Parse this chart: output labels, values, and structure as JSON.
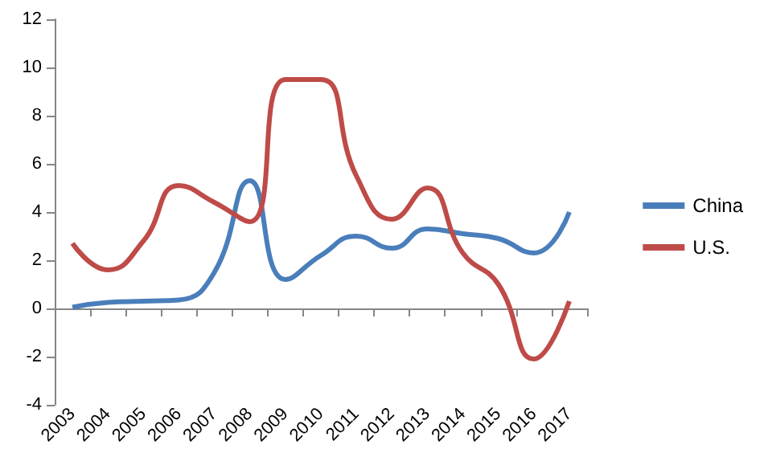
{
  "chart_data": {
    "type": "line",
    "categories": [
      "2003",
      "2004",
      "2005",
      "2006",
      "2007",
      "2008",
      "2009",
      "2010",
      "2011",
      "2012",
      "2013",
      "2014",
      "2015",
      "2016",
      "2017"
    ],
    "series": [
      {
        "name": "China",
        "color": "#4a7ebb",
        "values": [
          0.05,
          0.25,
          0.3,
          0.35,
          1.5,
          5.3,
          1.2,
          2.2,
          3.0,
          2.5,
          3.3,
          3.1,
          2.9,
          2.3,
          4.0
        ]
      },
      {
        "name": "U.S.",
        "color": "#be4b48",
        "values": [
          2.7,
          1.6,
          2.8,
          5.1,
          4.4,
          3.6,
          9.5,
          9.5,
          5.5,
          3.7,
          5.0,
          2.3,
          1.0,
          -2.1,
          0.3
        ]
      }
    ],
    "ylim": [
      -4,
      12
    ],
    "yticks": [
      -4,
      -2,
      0,
      2,
      4,
      6,
      8,
      10,
      12
    ],
    "legend": "right",
    "marker": "none",
    "line_style": "solid"
  }
}
